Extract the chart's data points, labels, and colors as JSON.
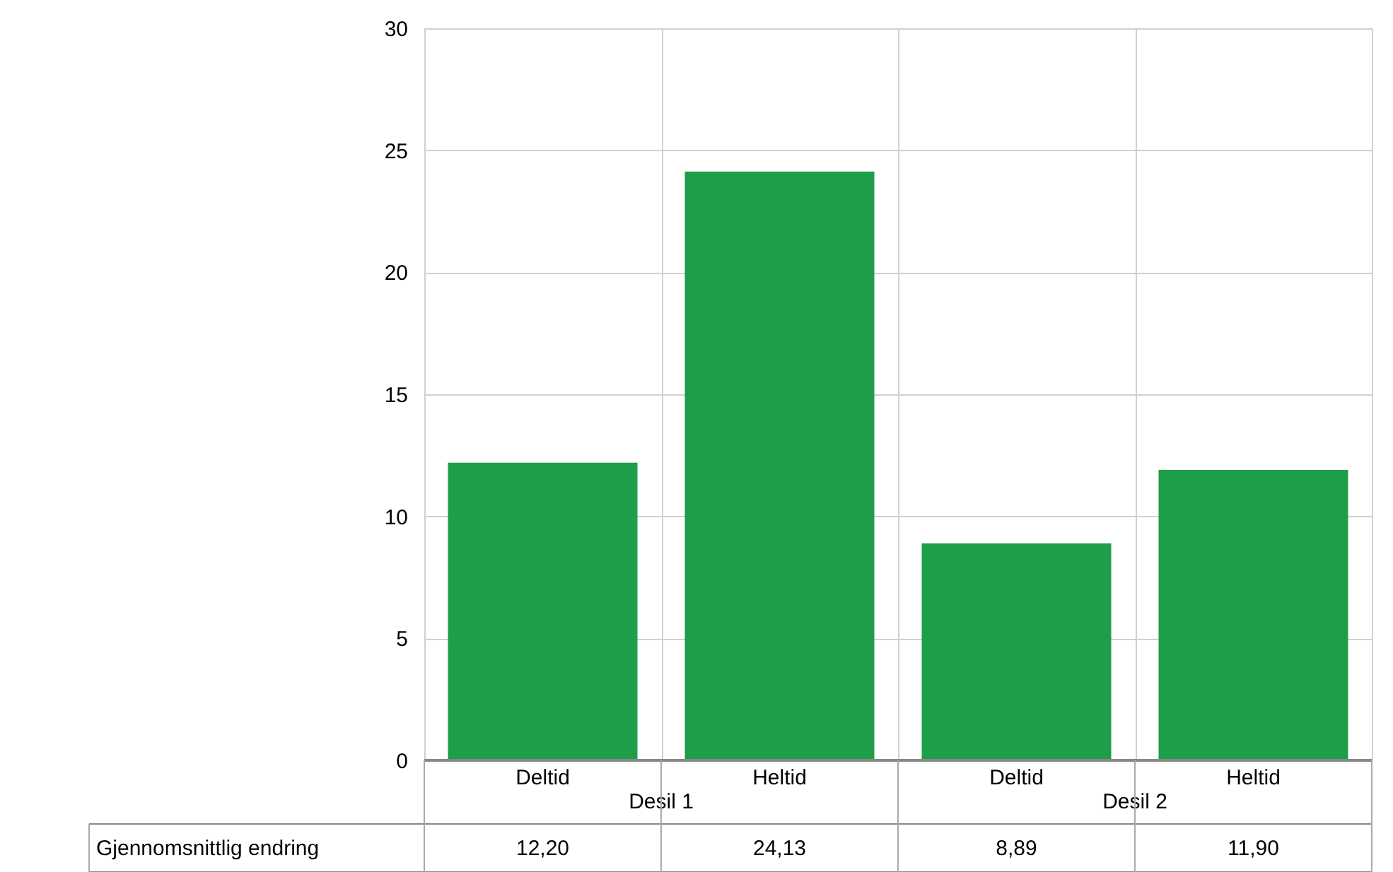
{
  "chart_data": {
    "type": "bar",
    "categories": [
      "Deltid",
      "Heltid",
      "Deltid",
      "Heltid"
    ],
    "series": [
      {
        "name": "Gjennomsnittlig endring",
        "color": "#1f9e4a",
        "values": [
          12.2,
          24.13,
          8.89,
          11.9
        ],
        "value_labels": [
          "12,20",
          "24,13",
          "8,89",
          "11,90"
        ]
      }
    ],
    "annotations": [
      "Desil 1",
      "Desil 2"
    ],
    "ylim": [
      0,
      30
    ],
    "yticks": [
      0,
      5,
      10,
      15,
      20,
      25,
      30
    ],
    "grid": true,
    "legend": false
  }
}
